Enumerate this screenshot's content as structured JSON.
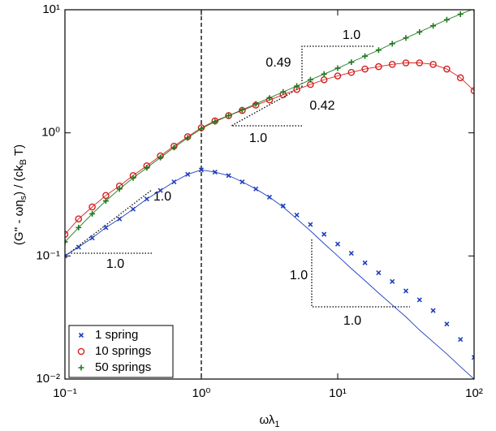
{
  "chart_data": {
    "type": "scatter",
    "xlabel": [
      "ωλ",
      "1"
    ],
    "ylabel": [
      "(G'' - ωη",
      "s",
      ") / (ck",
      "B",
      " T)"
    ],
    "xlog": true,
    "ylog": true,
    "xlim": [
      0.1,
      100
    ],
    "ylim": [
      0.01,
      10
    ],
    "xticks": [
      {
        "value": 0.1,
        "label": "10⁻¹"
      },
      {
        "value": 1,
        "label": "10⁰"
      },
      {
        "value": 10,
        "label": "10¹"
      },
      {
        "value": 100,
        "label": "10²"
      }
    ],
    "yticks": [
      {
        "value": 0.01,
        "label": "10⁻²"
      },
      {
        "value": 0.1,
        "label": "10⁻¹"
      },
      {
        "value": 1,
        "label": "10⁰"
      },
      {
        "value": 10,
        "label": "10¹"
      }
    ],
    "vline": 1,
    "legend": "lower left",
    "x": [
      0.1,
      0.1259,
      0.1585,
      0.1995,
      0.2512,
      0.3162,
      0.3981,
      0.5012,
      0.631,
      0.7943,
      1,
      1.259,
      1.585,
      1.995,
      2.512,
      3.162,
      3.981,
      5.012,
      6.31,
      7.943,
      10,
      12.59,
      15.85,
      19.95,
      25.12,
      31.62,
      39.81,
      50.12,
      63.1,
      79.43,
      100
    ],
    "series": [
      {
        "name": "1 spring",
        "color": "#1f3fbf",
        "marker": "x",
        "values": [
          0.1,
          0.118,
          0.14,
          0.17,
          0.2,
          0.24,
          0.29,
          0.34,
          0.4,
          0.46,
          0.5,
          0.48,
          0.45,
          0.4,
          0.35,
          0.3,
          0.255,
          0.215,
          0.18,
          0.15,
          0.125,
          0.105,
          0.088,
          0.073,
          0.062,
          0.052,
          0.044,
          0.036,
          0.028,
          0.021,
          0.015
        ],
        "fit": [
          0.1,
          0.118,
          0.14,
          0.17,
          0.2,
          0.24,
          0.29,
          0.34,
          0.4,
          0.46,
          0.5,
          0.48,
          0.45,
          0.4,
          0.35,
          0.3,
          0.25,
          0.2,
          0.16,
          0.126,
          0.1,
          0.079,
          0.063,
          0.05,
          0.04,
          0.032,
          0.025,
          0.02,
          0.016,
          0.0126,
          0.01
        ]
      },
      {
        "name": "10 springs",
        "color": "#d42020",
        "marker": "o",
        "values": [
          0.15,
          0.2,
          0.25,
          0.31,
          0.37,
          0.45,
          0.54,
          0.65,
          0.78,
          0.93,
          1.1,
          1.25,
          1.38,
          1.52,
          1.68,
          1.85,
          2.04,
          2.25,
          2.47,
          2.7,
          2.9,
          3.1,
          3.3,
          3.45,
          3.6,
          3.7,
          3.7,
          3.6,
          3.3,
          2.8,
          2.2
        ]
      },
      {
        "name": "50 springs",
        "color": "#1e7a1e",
        "marker": "+",
        "values": [
          0.13,
          0.17,
          0.22,
          0.28,
          0.35,
          0.43,
          0.52,
          0.63,
          0.76,
          0.91,
          1.08,
          1.23,
          1.38,
          1.54,
          1.72,
          1.92,
          2.15,
          2.4,
          2.7,
          3.0,
          3.35,
          3.75,
          4.2,
          4.7,
          5.3,
          5.9,
          6.6,
          7.4,
          8.3,
          9.2,
          10.2
        ]
      }
    ],
    "annotations": [
      "1.0",
      "0.49",
      "0.42",
      "1.0",
      "1.0",
      "1.0",
      "1.0",
      "1.0"
    ]
  }
}
